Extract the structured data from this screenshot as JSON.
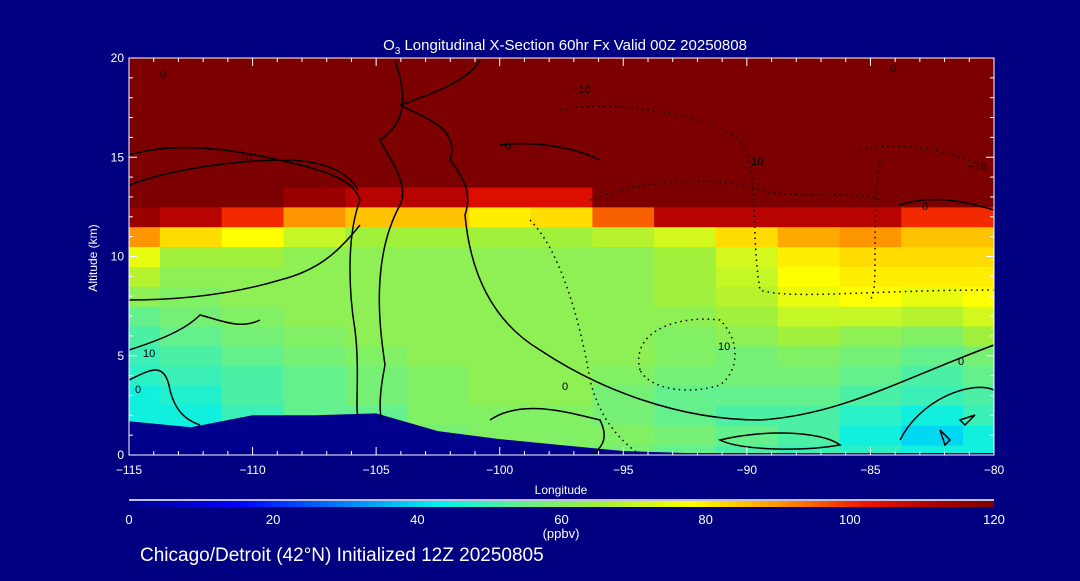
{
  "chart_data": {
    "type": "heatmap",
    "title_prefix": "O",
    "title_sub": "3",
    "title_rest": " Longitudinal X-Section 60hr  Fx Valid 00Z 20250808",
    "xlabel": "Longitude",
    "ylabel": "Altitude (km)",
    "xlim": [
      -115,
      -80
    ],
    "ylim": [
      0,
      20
    ],
    "xticks": [
      -115,
      -110,
      -105,
      -100,
      -95,
      -90,
      -85,
      -80
    ],
    "xtick_labels": [
      "−115",
      "−110",
      "−105",
      "−100",
      "−95",
      "−90",
      "−85",
      "−80"
    ],
    "yticks": [
      0,
      5,
      10,
      15,
      20
    ],
    "ytick_labels": [
      "0",
      "5",
      "10",
      "15",
      "20"
    ],
    "x": [
      -115,
      -112.5,
      -110,
      -107.5,
      -105,
      -102.5,
      -100,
      -97.5,
      -95,
      -92.5,
      -90,
      -87.5,
      -85,
      -82.5,
      -80
    ],
    "y": [
      0,
      1,
      2,
      3,
      4,
      5,
      6,
      7,
      8,
      9,
      10,
      11,
      12,
      13,
      14,
      15,
      16,
      17,
      18,
      19,
      20
    ],
    "z_ppbv": [
      [
        40,
        45,
        50,
        55,
        55,
        55,
        58,
        60,
        58,
        55,
        52,
        50,
        48,
        45,
        45
      ],
      [
        42,
        42,
        48,
        55,
        55,
        58,
        60,
        60,
        60,
        58,
        55,
        52,
        45,
        40,
        45
      ],
      [
        45,
        45,
        50,
        55,
        55,
        60,
        60,
        60,
        58,
        55,
        52,
        52,
        48,
        45,
        50
      ],
      [
        45,
        47,
        52,
        55,
        58,
        60,
        62,
        62,
        58,
        55,
        55,
        55,
        52,
        50,
        52
      ],
      [
        48,
        50,
        52,
        55,
        58,
        60,
        62,
        62,
        60,
        58,
        58,
        58,
        55,
        52,
        55
      ],
      [
        50,
        52,
        55,
        58,
        60,
        62,
        62,
        62,
        62,
        60,
        58,
        60,
        58,
        55,
        58
      ],
      [
        52,
        55,
        58,
        60,
        62,
        62,
        62,
        62,
        62,
        60,
        62,
        65,
        62,
        60,
        65
      ],
      [
        55,
        58,
        60,
        62,
        62,
        62,
        62,
        62,
        62,
        62,
        65,
        70,
        70,
        68,
        72
      ],
      [
        62,
        60,
        62,
        62,
        62,
        62,
        62,
        62,
        62,
        65,
        68,
        75,
        78,
        75,
        78
      ],
      [
        68,
        62,
        62,
        62,
        62,
        62,
        62,
        62,
        62,
        65,
        70,
        78,
        80,
        80,
        80
      ],
      [
        75,
        65,
        65,
        62,
        62,
        62,
        62,
        62,
        62,
        65,
        72,
        80,
        82,
        82,
        82
      ],
      [
        90,
        82,
        78,
        70,
        65,
        65,
        65,
        65,
        68,
        72,
        82,
        88,
        90,
        85,
        85
      ],
      [
        115,
        110,
        100,
        90,
        85,
        85,
        80,
        82,
        95,
        110,
        110,
        110,
        110,
        100,
        100
      ],
      [
        120,
        120,
        120,
        115,
        110,
        110,
        105,
        105,
        120,
        120,
        120,
        120,
        120,
        120,
        120
      ],
      [
        120,
        120,
        120,
        120,
        120,
        120,
        120,
        120,
        120,
        120,
        120,
        120,
        120,
        120,
        120
      ],
      [
        120,
        120,
        120,
        120,
        120,
        120,
        120,
        120,
        120,
        120,
        120,
        120,
        120,
        120,
        120
      ],
      [
        120,
        120,
        120,
        120,
        120,
        120,
        120,
        120,
        120,
        120,
        120,
        120,
        120,
        120,
        120
      ],
      [
        120,
        120,
        120,
        120,
        120,
        120,
        120,
        120,
        120,
        120,
        120,
        120,
        120,
        120,
        120
      ],
      [
        120,
        120,
        120,
        120,
        120,
        120,
        120,
        120,
        120,
        120,
        120,
        120,
        120,
        120,
        120
      ],
      [
        120,
        120,
        120,
        120,
        120,
        120,
        120,
        120,
        120,
        120,
        120,
        120,
        120,
        120,
        120
      ],
      [
        120,
        120,
        120,
        120,
        120,
        120,
        120,
        120,
        120,
        120,
        120,
        120,
        120,
        120,
        120
      ]
    ],
    "terrain_km": [
      1.7,
      1.4,
      2.0,
      2.0,
      2.1,
      1.2,
      0.8,
      0.5,
      0.2,
      0.1,
      0.1,
      0.1,
      0.1,
      0.1,
      0.1
    ],
    "contour_labels": [
      "0",
      "10",
      "10",
      "0",
      "−10",
      "0",
      "−10",
      "10",
      "0",
      "−10",
      "0",
      "0",
      "0"
    ],
    "colorbar": {
      "range": [
        0,
        120
      ],
      "ticks": [
        "0",
        "20",
        "40",
        "60",
        "80",
        "100",
        "120"
      ],
      "units": "(ppbv)"
    },
    "footer": "Chicago/Detroit (42°N) Initialized 12Z 20250805"
  },
  "colors": {
    "background": "#000080",
    "terrain": "#00008c"
  }
}
